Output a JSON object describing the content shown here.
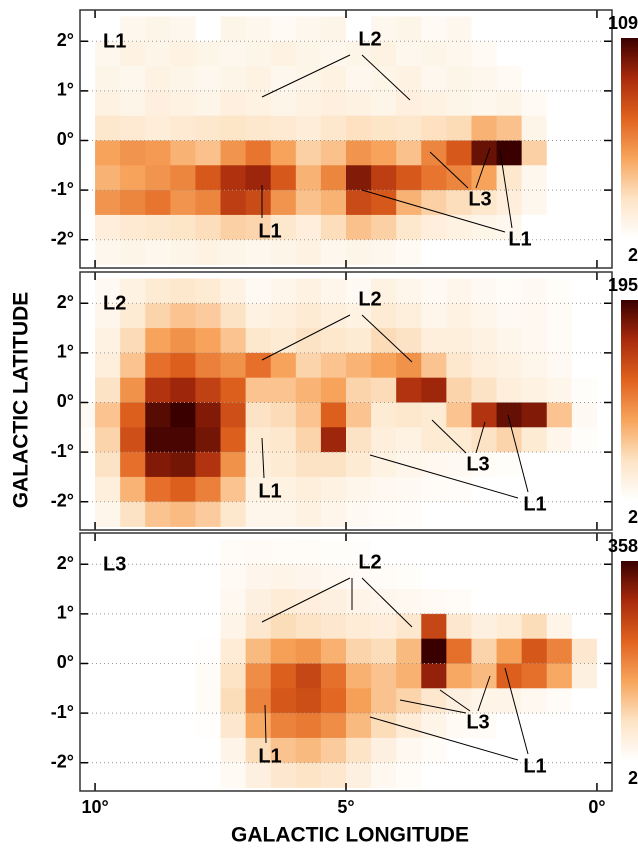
{
  "xlabel": "GALACTIC LONGITUDE",
  "ylabel": "GALACTIC LATITUDE",
  "chart_data": [
    {
      "type": "heatmap",
      "label": "L1",
      "annotations": [
        "L2",
        "L1",
        "L3",
        "L1"
      ],
      "xlim": [
        10.3,
        -0.3
      ],
      "ylim": [
        -2.57,
        2.63
      ],
      "yticks": [
        {
          "value": 2,
          "label": "2°"
        },
        {
          "value": 1,
          "label": "1°"
        },
        {
          "value": 0,
          "label": "0°"
        },
        {
          "value": -1,
          "label": "-1°"
        },
        {
          "value": -2,
          "label": "-2°"
        }
      ],
      "clim": [
        2,
        109
      ],
      "colormap": [
        "#ffffff",
        "#fde3c4",
        "#f7a45c",
        "#e0621e",
        "#a82a0c",
        "#3a0000"
      ],
      "grid": true,
      "x": [
        10.25,
        9.75,
        9.25,
        8.75,
        8.25,
        7.75,
        7.25,
        6.75,
        6.25,
        5.75,
        5.25,
        4.75,
        4.25,
        3.75,
        3.25,
        2.75,
        2.25,
        1.75,
        1.25,
        0.75,
        0.25,
        -0.25
      ],
      "y": [
        2.25,
        1.75,
        1.25,
        0.75,
        0.25,
        -0.25,
        -0.75,
        -1.25,
        -1.75,
        -2.25
      ],
      "z": [
        [
          0,
          0,
          8,
          10,
          8,
          0,
          10,
          8,
          6,
          8,
          10,
          0,
          8,
          10,
          6,
          8,
          0,
          0,
          0,
          0,
          0,
          0
        ],
        [
          0,
          8,
          12,
          10,
          12,
          10,
          8,
          10,
          12,
          10,
          8,
          10,
          12,
          8,
          10,
          8,
          6,
          0,
          0,
          0,
          0,
          0
        ],
        [
          0,
          10,
          8,
          12,
          10,
          8,
          10,
          12,
          8,
          10,
          12,
          8,
          10,
          12,
          8,
          10,
          8,
          6,
          0,
          0,
          0,
          0
        ],
        [
          0,
          12,
          10,
          14,
          12,
          10,
          14,
          12,
          10,
          12,
          14,
          12,
          10,
          14,
          12,
          10,
          8,
          10,
          6,
          0,
          0,
          0
        ],
        [
          0,
          20,
          18,
          16,
          18,
          20,
          22,
          20,
          18,
          16,
          20,
          24,
          22,
          20,
          24,
          26,
          40,
          35,
          10,
          0,
          0,
          0
        ],
        [
          0,
          45,
          50,
          48,
          40,
          35,
          50,
          60,
          45,
          30,
          35,
          50,
          45,
          35,
          55,
          70,
          100,
          109,
          30,
          0,
          0,
          0
        ],
        [
          0,
          40,
          45,
          50,
          55,
          70,
          85,
          90,
          70,
          40,
          55,
          95,
          80,
          70,
          60,
          55,
          45,
          20,
          8,
          0,
          0,
          0
        ],
        [
          0,
          50,
          55,
          60,
          50,
          55,
          80,
          75,
          50,
          35,
          40,
          75,
          70,
          40,
          30,
          25,
          20,
          15,
          8,
          0,
          0,
          0
        ],
        [
          0,
          15,
          18,
          20,
          22,
          25,
          30,
          28,
          20,
          15,
          25,
          35,
          30,
          20,
          15,
          12,
          10,
          8,
          0,
          0,
          0,
          0
        ],
        [
          0,
          8,
          10,
          8,
          10,
          12,
          10,
          8,
          10,
          12,
          8,
          10,
          8,
          6,
          0,
          0,
          0,
          0,
          0,
          0,
          0,
          0
        ]
      ]
    },
    {
      "type": "heatmap",
      "label": "L2",
      "annotations": [
        "L2",
        "L1",
        "L3",
        "L1"
      ],
      "xlim": [
        10.3,
        -0.3
      ],
      "ylim": [
        -2.57,
        2.63
      ],
      "yticks": [
        {
          "value": 2,
          "label": "2°"
        },
        {
          "value": 1,
          "label": "1°"
        },
        {
          "value": 0,
          "label": "0°"
        },
        {
          "value": -1,
          "label": "-1°"
        },
        {
          "value": -2,
          "label": "-2°"
        }
      ],
      "clim": [
        2,
        195
      ],
      "colormap": [
        "#ffffff",
        "#fde3c4",
        "#f7a45c",
        "#e0621e",
        "#a82a0c",
        "#3a0000"
      ],
      "grid": true,
      "x": [
        10.25,
        9.75,
        9.25,
        8.75,
        8.25,
        7.75,
        7.25,
        6.75,
        6.25,
        5.75,
        5.25,
        4.75,
        4.25,
        3.75,
        3.25,
        2.75,
        2.25,
        1.75,
        1.25,
        0.75,
        0.25,
        -0.25
      ],
      "y": [
        2.25,
        1.75,
        1.25,
        0.75,
        0.25,
        -0.25,
        -0.75,
        -1.25,
        -1.75,
        -2.25
      ],
      "z": [
        [
          0,
          10,
          20,
          30,
          35,
          30,
          20,
          10,
          15,
          20,
          15,
          10,
          20,
          15,
          10,
          15,
          10,
          8,
          10,
          5,
          0,
          0
        ],
        [
          0,
          15,
          30,
          50,
          60,
          55,
          40,
          20,
          25,
          30,
          25,
          20,
          30,
          25,
          15,
          20,
          15,
          10,
          12,
          8,
          0,
          0
        ],
        [
          0,
          20,
          45,
          80,
          90,
          80,
          60,
          35,
          30,
          40,
          35,
          30,
          45,
          40,
          25,
          25,
          20,
          15,
          12,
          8,
          0,
          0
        ],
        [
          0,
          25,
          60,
          110,
          120,
          100,
          90,
          110,
          80,
          50,
          60,
          70,
          80,
          90,
          60,
          35,
          25,
          20,
          15,
          10,
          0,
          0
        ],
        [
          0,
          40,
          90,
          150,
          160,
          140,
          120,
          60,
          60,
          70,
          80,
          50,
          45,
          150,
          160,
          50,
          40,
          25,
          20,
          15,
          5,
          0
        ],
        [
          10,
          60,
          120,
          185,
          195,
          170,
          130,
          40,
          45,
          60,
          120,
          60,
          30,
          35,
          30,
          60,
          150,
          180,
          170,
          60,
          10,
          0
        ],
        [
          5,
          50,
          130,
          190,
          190,
          175,
          120,
          30,
          35,
          50,
          160,
          40,
          25,
          20,
          30,
          30,
          40,
          50,
          30,
          15,
          5,
          0
        ],
        [
          0,
          40,
          110,
          170,
          175,
          150,
          90,
          25,
          30,
          40,
          40,
          30,
          20,
          15,
          12,
          10,
          8,
          5,
          0,
          0,
          0,
          0
        ],
        [
          0,
          25,
          70,
          110,
          120,
          100,
          60,
          20,
          20,
          25,
          20,
          15,
          12,
          10,
          8,
          6,
          0,
          0,
          0,
          0,
          0,
          0
        ],
        [
          0,
          15,
          40,
          60,
          65,
          55,
          35,
          15,
          15,
          20,
          15,
          10,
          8,
          6,
          0,
          0,
          0,
          0,
          0,
          0,
          0,
          0
        ]
      ]
    },
    {
      "type": "heatmap",
      "label": "L3",
      "annotations": [
        "L2",
        "L1",
        "L3",
        "L1"
      ],
      "xlim": [
        10.3,
        -0.3
      ],
      "ylim": [
        -2.57,
        2.63
      ],
      "xticks": [
        {
          "value": 10,
          "label": "10°"
        },
        {
          "value": 5,
          "label": "5°"
        },
        {
          "value": 0,
          "label": "0°"
        }
      ],
      "yticks": [
        {
          "value": 2,
          "label": "2°"
        },
        {
          "value": 1,
          "label": "1°"
        },
        {
          "value": 0,
          "label": "0°"
        },
        {
          "value": -1,
          "label": "-1°"
        },
        {
          "value": -2,
          "label": "-2°"
        }
      ],
      "clim": [
        2,
        358
      ],
      "colormap": [
        "#ffffff",
        "#fde3c4",
        "#f7a45c",
        "#e0621e",
        "#a82a0c",
        "#3a0000"
      ],
      "grid": true,
      "x": [
        10.25,
        9.75,
        9.25,
        8.75,
        8.25,
        7.75,
        7.25,
        6.75,
        6.25,
        5.75,
        5.25,
        4.75,
        4.25,
        3.75,
        3.25,
        2.75,
        2.25,
        1.75,
        1.25,
        0.75,
        0.25,
        -0.25
      ],
      "y": [
        2.25,
        1.75,
        1.25,
        0.75,
        0.25,
        -0.25,
        -0.75,
        -1.25,
        -1.75,
        -2.25
      ],
      "z": [
        [
          0,
          0,
          0,
          0,
          0,
          0,
          10,
          15,
          12,
          10,
          8,
          6,
          0,
          0,
          0,
          0,
          0,
          0,
          0,
          0,
          0,
          0
        ],
        [
          0,
          0,
          0,
          0,
          0,
          0,
          15,
          25,
          30,
          25,
          20,
          15,
          10,
          8,
          0,
          0,
          0,
          0,
          0,
          0,
          0,
          0
        ],
        [
          0,
          0,
          0,
          0,
          0,
          0,
          20,
          40,
          50,
          45,
          40,
          30,
          25,
          20,
          15,
          10,
          0,
          0,
          0,
          0,
          0,
          0
        ],
        [
          0,
          0,
          0,
          0,
          0,
          0,
          30,
          60,
          80,
          70,
          60,
          50,
          45,
          60,
          250,
          60,
          40,
          50,
          80,
          30,
          0,
          0
        ],
        [
          0,
          0,
          0,
          0,
          0,
          5,
          50,
          120,
          150,
          160,
          130,
          90,
          80,
          120,
          358,
          200,
          90,
          150,
          230,
          180,
          60,
          0
        ],
        [
          0,
          0,
          0,
          0,
          0,
          10,
          70,
          170,
          220,
          250,
          200,
          130,
          110,
          130,
          300,
          140,
          120,
          220,
          200,
          140,
          40,
          0
        ],
        [
          0,
          0,
          0,
          0,
          0,
          10,
          80,
          180,
          230,
          240,
          210,
          150,
          110,
          90,
          60,
          40,
          30,
          30,
          20,
          10,
          0,
          0
        ],
        [
          0,
          0,
          0,
          0,
          0,
          5,
          60,
          140,
          180,
          190,
          170,
          120,
          80,
          50,
          30,
          15,
          10,
          0,
          0,
          0,
          0,
          0
        ],
        [
          0,
          0,
          0,
          0,
          0,
          0,
          30,
          80,
          110,
          120,
          100,
          70,
          40,
          20,
          10,
          0,
          0,
          0,
          0,
          0,
          0,
          0
        ],
        [
          0,
          0,
          0,
          0,
          0,
          0,
          15,
          40,
          60,
          70,
          60,
          40,
          20,
          10,
          0,
          0,
          0,
          0,
          0,
          0,
          0,
          0
        ]
      ]
    }
  ]
}
